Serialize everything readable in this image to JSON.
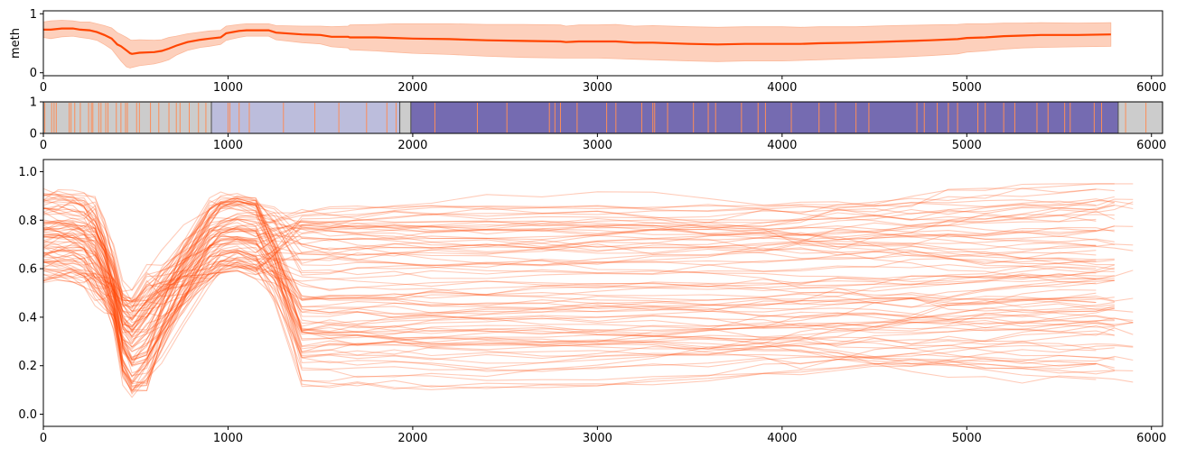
{
  "chart_data": [
    {
      "type": "area",
      "ylabel": "meth",
      "xlim": [
        0,
        6060
      ],
      "ylim": [
        -0.05,
        1.05
      ],
      "xticks": [
        "0",
        "1000",
        "2000",
        "3000",
        "4000",
        "5000",
        "6000"
      ],
      "yticks": [
        "0",
        "1"
      ],
      "color": "#ff4500",
      "series": [
        {
          "x": [
            0,
            40,
            100,
            160,
            200,
            250,
            290,
            330,
            370,
            400,
            420,
            450,
            470,
            480,
            520,
            600,
            640,
            680,
            720,
            780,
            850,
            900,
            960,
            990,
            1060,
            1100,
            1160,
            1220,
            1260,
            1400,
            1500,
            1560,
            1650,
            1660,
            1800,
            1900,
            2000,
            2200,
            2400,
            2600,
            2800,
            2830,
            2900,
            3000,
            3100,
            3200,
            3300,
            3500,
            3650,
            3800,
            4000,
            4100,
            4200,
            4400,
            4600,
            4800,
            4950,
            5000,
            5100,
            5200,
            5300,
            5400,
            5600,
            5780
          ],
          "mean": [
            0.73,
            0.73,
            0.75,
            0.75,
            0.73,
            0.72,
            0.69,
            0.64,
            0.58,
            0.48,
            0.45,
            0.38,
            0.33,
            0.32,
            0.34,
            0.35,
            0.37,
            0.41,
            0.46,
            0.52,
            0.56,
            0.58,
            0.6,
            0.67,
            0.71,
            0.72,
            0.72,
            0.72,
            0.68,
            0.65,
            0.64,
            0.61,
            0.61,
            0.6,
            0.6,
            0.59,
            0.58,
            0.57,
            0.55,
            0.54,
            0.53,
            0.52,
            0.53,
            0.53,
            0.53,
            0.51,
            0.51,
            0.49,
            0.48,
            0.49,
            0.49,
            0.49,
            0.5,
            0.51,
            0.53,
            0.55,
            0.57,
            0.59,
            0.6,
            0.62,
            0.63,
            0.64,
            0.64,
            0.65
          ],
          "lower": [
            0.6,
            0.58,
            0.61,
            0.62,
            0.6,
            0.58,
            0.55,
            0.48,
            0.4,
            0.28,
            0.2,
            0.1,
            0.08,
            0.09,
            0.12,
            0.15,
            0.18,
            0.22,
            0.3,
            0.38,
            0.43,
            0.45,
            0.48,
            0.55,
            0.6,
            0.62,
            0.62,
            0.62,
            0.56,
            0.51,
            0.49,
            0.44,
            0.42,
            0.39,
            0.37,
            0.35,
            0.33,
            0.31,
            0.28,
            0.26,
            0.25,
            0.25,
            0.25,
            0.25,
            0.24,
            0.23,
            0.22,
            0.2,
            0.19,
            0.2,
            0.2,
            0.21,
            0.22,
            0.24,
            0.26,
            0.29,
            0.32,
            0.35,
            0.37,
            0.4,
            0.42,
            0.43,
            0.44,
            0.45
          ],
          "upper": [
            0.86,
            0.88,
            0.89,
            0.88,
            0.86,
            0.86,
            0.83,
            0.8,
            0.76,
            0.68,
            0.65,
            0.6,
            0.56,
            0.55,
            0.56,
            0.55,
            0.56,
            0.6,
            0.62,
            0.66,
            0.69,
            0.71,
            0.72,
            0.79,
            0.82,
            0.83,
            0.83,
            0.83,
            0.8,
            0.79,
            0.79,
            0.78,
            0.79,
            0.81,
            0.82,
            0.83,
            0.83,
            0.83,
            0.82,
            0.82,
            0.81,
            0.79,
            0.81,
            0.81,
            0.82,
            0.79,
            0.8,
            0.78,
            0.77,
            0.78,
            0.78,
            0.77,
            0.78,
            0.78,
            0.8,
            0.81,
            0.82,
            0.83,
            0.83,
            0.84,
            0.84,
            0.85,
            0.84,
            0.85
          ]
        }
      ]
    },
    {
      "type": "bar",
      "xlim": [
        0,
        6060
      ],
      "ylim": [
        0,
        1
      ],
      "xticks": [
        "0",
        "1000",
        "2000",
        "3000",
        "4000",
        "5000",
        "6000"
      ],
      "yticks": [
        "0",
        "1"
      ],
      "regions": [
        {
          "start": 0,
          "end": 910,
          "color": "#cccccc"
        },
        {
          "start": 910,
          "end": 1930,
          "color": "#bcbddc"
        },
        {
          "start": 1930,
          "end": 1990,
          "color": "#cccccc"
        },
        {
          "start": 1990,
          "end": 5820,
          "color": "#756bb1"
        },
        {
          "start": 5820,
          "end": 6060,
          "color": "#cccccc"
        }
      ],
      "markers": [
        8,
        45,
        58,
        70,
        140,
        150,
        170,
        200,
        245,
        260,
        268,
        300,
        312,
        338,
        350,
        395,
        420,
        445,
        455,
        505,
        520,
        580,
        625,
        680,
        720,
        740,
        790,
        840,
        880,
        1000,
        1010,
        1060,
        1115,
        1300,
        1470,
        1600,
        1750,
        1860,
        1910,
        2120,
        2350,
        2510,
        2740,
        2770,
        2800,
        2890,
        3050,
        3100,
        3240,
        3300,
        3310,
        3380,
        3520,
        3600,
        3640,
        3780,
        3870,
        3910,
        4050,
        4200,
        4290,
        4400,
        4470,
        4730,
        4770,
        4840,
        4900,
        4950,
        5060,
        5100,
        5200,
        5260,
        5380,
        5440,
        5530,
        5560,
        5690,
        5730,
        5860,
        5970
      ],
      "marker_color": "#fc8d59"
    },
    {
      "type": "line",
      "xlim": [
        0,
        6060
      ],
      "ylim": [
        -0.05,
        1.05
      ],
      "xticks": [
        "0",
        "1000",
        "2000",
        "3000",
        "4000",
        "5000",
        "6000"
      ],
      "yticks": [
        "0.0",
        "0.2",
        "0.4",
        "0.6",
        "0.8",
        "1.0"
      ],
      "color": "#ff4500",
      "line_count": 90,
      "x": [
        0,
        80,
        160,
        220,
        280,
        330,
        380,
        430,
        480,
        560,
        640,
        760,
        900,
        960,
        1050,
        1150,
        1250,
        1400,
        1550,
        1700,
        1900,
        2100,
        2400,
        2700,
        3000,
        3300,
        3600,
        3900,
        4100,
        4300,
        4500,
        4700,
        4900,
        5100,
        5300,
        5500,
        5700,
        5800,
        5900
      ]
    }
  ]
}
